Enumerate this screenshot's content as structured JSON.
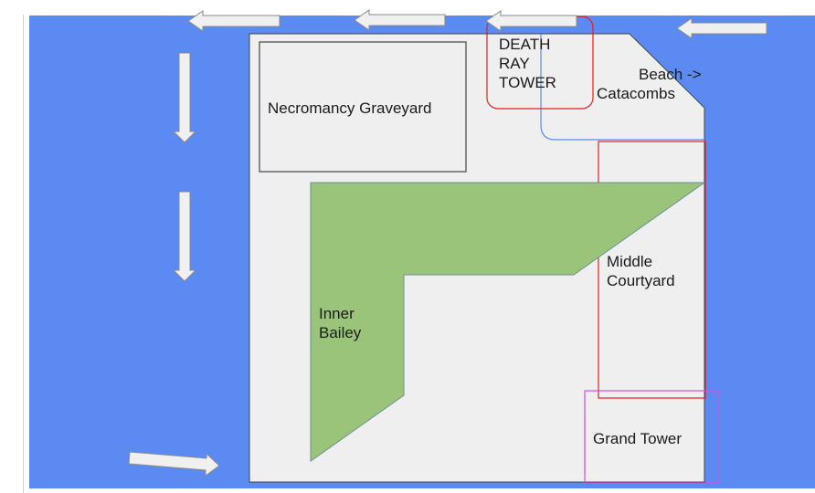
{
  "colors": {
    "water": "#5a8af2",
    "castle": "#efefef",
    "bailey": "#9bc47b",
    "outline_gray": "#666666",
    "outline_red": "#e02020",
    "outline_blue": "#5a8af2",
    "outline_magenta": "#d44ee0",
    "arrow": "#f0f0f0"
  },
  "labels": {
    "graveyard": "Necromancy Graveyard",
    "death_ray_1": "DEATH",
    "death_ray_2": "RAY",
    "death_ray_3": "TOWER",
    "beach": "Beach ->",
    "catacombs": "Catacombs",
    "middle_1": "Middle",
    "middle_2": "Courtyard",
    "inner_1": "Inner",
    "inner_2": "Bailey",
    "grand_tower": "Grand Tower"
  },
  "icons": {
    "flow_arrows": "block-arrow-icon"
  }
}
